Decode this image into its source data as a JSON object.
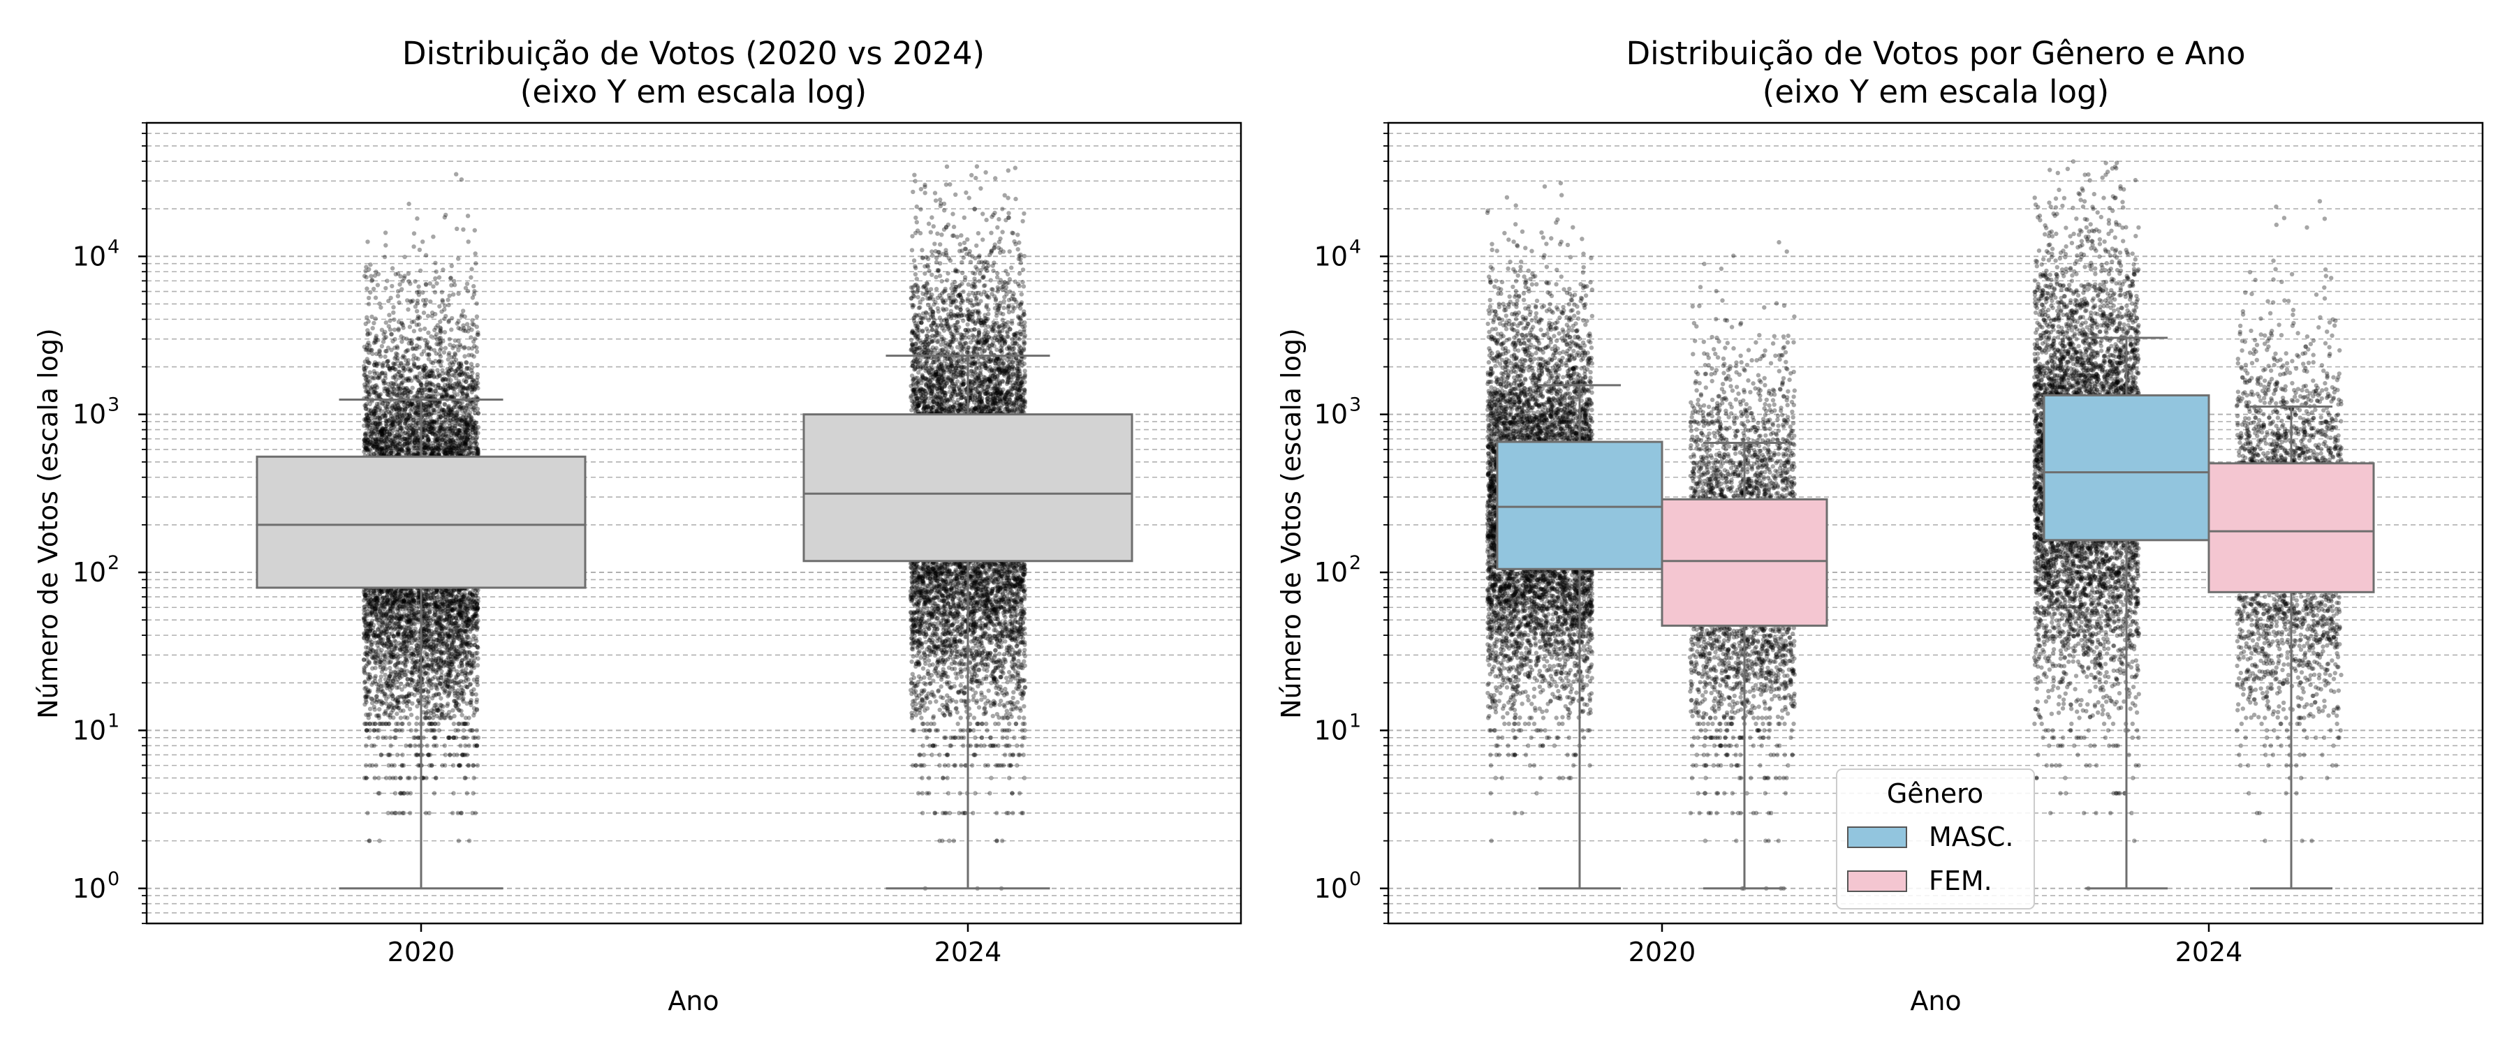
{
  "chart_data": [
    {
      "type": "box",
      "title_lines": [
        "Distribuição de Votos (2020 vs 2024)",
        "(eixo Y em escala log)"
      ],
      "xlabel": "Ano",
      "ylabel": "Número de Votos (escala log)",
      "yscale": "log",
      "ylim": [
        0.6,
        70000
      ],
      "yticks": [
        {
          "value": 1,
          "base": "10",
          "exp": "0"
        },
        {
          "value": 10,
          "base": "10",
          "exp": "1"
        },
        {
          "value": 100,
          "base": "10",
          "exp": "2"
        },
        {
          "value": 1000,
          "base": "10",
          "exp": "3"
        },
        {
          "value": 10000,
          "base": "10",
          "exp": "4"
        }
      ],
      "grid": "dashed, major and minor, y only",
      "categories": [
        "2020",
        "2024"
      ],
      "series": [
        {
          "color": "#d3d3d3",
          "boxes": [
            {
              "category": "2020",
              "whislo": 1,
              "q1": 80,
              "med": 200,
              "q3": 540,
              "whishi": 1240
            },
            {
              "category": "2024",
              "whislo": 1,
              "q1": 118,
              "med": 315,
              "q3": 1000,
              "whishi": 2350
            }
          ],
          "points": [
            {
              "category": "2020",
              "count": 9000,
              "max": 38000
            },
            {
              "category": "2024",
              "count": 9000,
              "max": 40000
            }
          ]
        }
      ]
    },
    {
      "type": "box",
      "title_lines": [
        "Distribuição de Votos por Gênero e Ano",
        "(eixo Y em escala log)"
      ],
      "xlabel": "Ano",
      "ylabel": "Número de Votos (escala log)",
      "yscale": "log",
      "ylim": [
        0.6,
        70000
      ],
      "yticks": [
        {
          "value": 1,
          "base": "10",
          "exp": "0"
        },
        {
          "value": 10,
          "base": "10",
          "exp": "1"
        },
        {
          "value": 100,
          "base": "10",
          "exp": "2"
        },
        {
          "value": 1000,
          "base": "10",
          "exp": "3"
        },
        {
          "value": 10000,
          "base": "10",
          "exp": "4"
        }
      ],
      "grid": "dashed, major and minor, y only",
      "categories": [
        "2020",
        "2024"
      ],
      "legend": {
        "title": "Gênero",
        "placement": "lower-center"
      },
      "series": [
        {
          "name": "MASC.",
          "color": "#92c5de",
          "boxes": [
            {
              "category": "2020",
              "whislo": 1,
              "q1": 105,
              "med": 260,
              "q3": 670,
              "whishi": 1530
            },
            {
              "category": "2024",
              "whislo": 1,
              "q1": 160,
              "med": 430,
              "q3": 1320,
              "whishi": 3050
            }
          ],
          "points": [
            {
              "category": "2020",
              "count": 7000,
              "max": 32000
            },
            {
              "category": "2024",
              "count": 6000,
              "max": 40000
            }
          ]
        },
        {
          "name": "FEM.",
          "color": "#f4c6d1",
          "boxes": [
            {
              "category": "2020",
              "whislo": 1,
              "q1": 46,
              "med": 118,
              "q3": 290,
              "whishi": 660
            },
            {
              "category": "2024",
              "whislo": 1,
              "q1": 75,
              "med": 182,
              "q3": 490,
              "whishi": 1120
            }
          ],
          "points": [
            {
              "category": "2020",
              "count": 3500,
              "max": 38000
            },
            {
              "category": "2024",
              "count": 2800,
              "max": 36000
            }
          ]
        }
      ]
    }
  ]
}
